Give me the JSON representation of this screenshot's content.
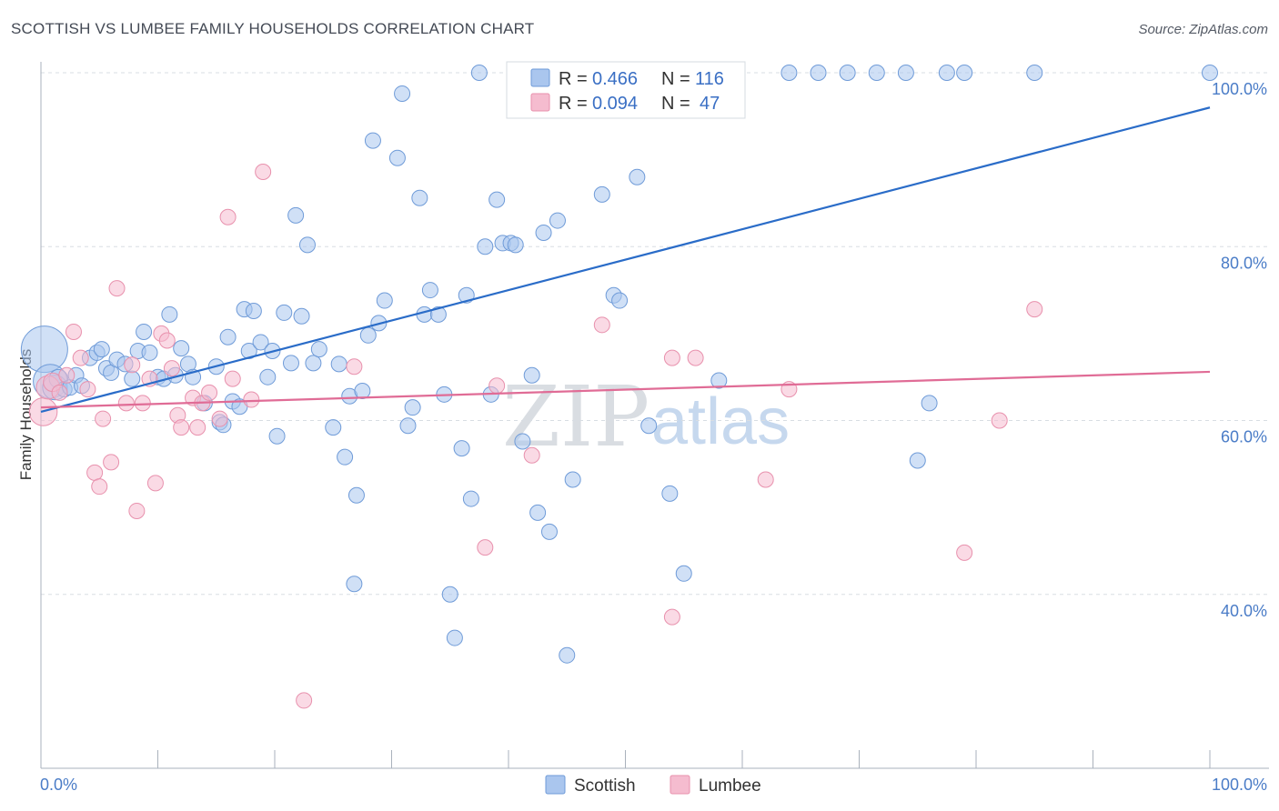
{
  "title": "SCOTTISH VS LUMBEE FAMILY HOUSEHOLDS CORRELATION CHART",
  "source": "Source: ZipAtlas.com",
  "watermark": {
    "zip": "ZIP",
    "atlas": "atlas"
  },
  "colors": {
    "scottish_fill": "#aac6ee",
    "scottish_stroke": "#6f9bd8",
    "scottish_line": "#2a6cc8",
    "lumbee_fill": "#f5bccf",
    "lumbee_stroke": "#e891ad",
    "lumbee_line": "#e06c96",
    "grid": "#d8dde3",
    "tick_label": "#4a7cc7"
  },
  "legend": {
    "rows": [
      {
        "r_label": "R =",
        "r_value": "0.466",
        "n_label": "N =",
        "n_value": "116"
      },
      {
        "r_label": "R =",
        "r_value": "0.094",
        "n_label": "N =",
        "n_value": "47"
      }
    ]
  },
  "bottom_legend": [
    "Scottish",
    "Lumbee"
  ],
  "chart_data": {
    "type": "scatter",
    "title": "SCOTTISH VS LUMBEE FAMILY HOUSEHOLDS CORRELATION CHART",
    "xlabel": "",
    "ylabel": "Family Households",
    "xlim": [
      0,
      100
    ],
    "ylim": [
      20,
      100
    ],
    "x_tick_labels": [
      "0.0%",
      "100.0%"
    ],
    "y_ticks": [
      40,
      60,
      80,
      100
    ],
    "y_tick_labels": [
      "40.0%",
      "60.0%",
      "80.0%",
      "100.0%"
    ],
    "grid": true,
    "legend_position": "top-center",
    "series": [
      {
        "name": "Scottish",
        "r": 0.466,
        "n": 116,
        "trend": [
          [
            0,
            61.0
          ],
          [
            100,
            96.0
          ]
        ],
        "points": [
          [
            0.3,
            68.2,
            3
          ],
          [
            0.8,
            64.5,
            2.2
          ],
          [
            1.2,
            63.8,
            1.6
          ],
          [
            1.5,
            64.8,
            1.2
          ],
          [
            2.0,
            63.6,
            1
          ],
          [
            2.5,
            63.8,
            1
          ],
          [
            3.0,
            65.2,
            1
          ],
          [
            3.5,
            64.0,
            1
          ],
          [
            4.2,
            67.2,
            1
          ],
          [
            4.8,
            67.8,
            1
          ],
          [
            5.2,
            68.2,
            1
          ],
          [
            5.6,
            66.0,
            1
          ],
          [
            6.0,
            65.5,
            1
          ],
          [
            6.5,
            67.0,
            1
          ],
          [
            7.2,
            66.5,
            1
          ],
          [
            7.8,
            64.8,
            1
          ],
          [
            8.3,
            68.0,
            1
          ],
          [
            8.8,
            70.2,
            1
          ],
          [
            9.3,
            67.8,
            1
          ],
          [
            10.0,
            65.0,
            1
          ],
          [
            10.5,
            64.8,
            1
          ],
          [
            11.0,
            72.2,
            1
          ],
          [
            11.5,
            65.2,
            1
          ],
          [
            12.0,
            68.3,
            1
          ],
          [
            12.6,
            66.5,
            1
          ],
          [
            13.0,
            65.0,
            1
          ],
          [
            14.0,
            62.0,
            1
          ],
          [
            15.0,
            66.2,
            1
          ],
          [
            15.3,
            59.8,
            1
          ],
          [
            15.6,
            59.5,
            1
          ],
          [
            16.0,
            69.6,
            1
          ],
          [
            16.4,
            62.2,
            1
          ],
          [
            17.0,
            61.6,
            1
          ],
          [
            17.4,
            72.8,
            1
          ],
          [
            17.8,
            68.0,
            1
          ],
          [
            18.2,
            72.6,
            1
          ],
          [
            18.8,
            69.0,
            1
          ],
          [
            19.4,
            65.0,
            1
          ],
          [
            19.8,
            68.0,
            1
          ],
          [
            20.2,
            58.2,
            1
          ],
          [
            20.8,
            72.4,
            1
          ],
          [
            21.4,
            66.6,
            1
          ],
          [
            21.8,
            83.6,
            1
          ],
          [
            22.3,
            72.0,
            1
          ],
          [
            22.8,
            80.2,
            1
          ],
          [
            23.3,
            66.6,
            1
          ],
          [
            23.8,
            68.2,
            1
          ],
          [
            25.0,
            59.2,
            1
          ],
          [
            25.5,
            66.5,
            1
          ],
          [
            26.0,
            55.8,
            1
          ],
          [
            26.4,
            62.8,
            1
          ],
          [
            26.8,
            41.2,
            1
          ],
          [
            27.0,
            51.4,
            1
          ],
          [
            27.5,
            63.4,
            1
          ],
          [
            28.0,
            69.8,
            1
          ],
          [
            28.4,
            92.2,
            1
          ],
          [
            28.9,
            71.2,
            1
          ],
          [
            29.4,
            73.8,
            1
          ],
          [
            30.5,
            90.2,
            1
          ],
          [
            30.9,
            97.6,
            1
          ],
          [
            31.4,
            59.4,
            1
          ],
          [
            31.8,
            61.5,
            1
          ],
          [
            32.4,
            85.6,
            1
          ],
          [
            32.8,
            72.2,
            1
          ],
          [
            33.3,
            75.0,
            1
          ],
          [
            34.0,
            72.2,
            1
          ],
          [
            34.5,
            63.0,
            1
          ],
          [
            35.0,
            40.0,
            1
          ],
          [
            35.4,
            35.0,
            1
          ],
          [
            36.0,
            56.8,
            1
          ],
          [
            36.4,
            74.4,
            1
          ],
          [
            36.8,
            51.0,
            1
          ],
          [
            37.5,
            100.0,
            1
          ],
          [
            38.0,
            80.0,
            1
          ],
          [
            38.5,
            63.0,
            1
          ],
          [
            39.0,
            85.4,
            1
          ],
          [
            39.5,
            80.4,
            1
          ],
          [
            40.2,
            80.4,
            1
          ],
          [
            40.6,
            80.2,
            1
          ],
          [
            41.2,
            57.6,
            1
          ],
          [
            42.0,
            65.2,
            1
          ],
          [
            42.5,
            49.4,
            1
          ],
          [
            43.0,
            81.6,
            1
          ],
          [
            43.5,
            47.2,
            1
          ],
          [
            44.2,
            83.0,
            1
          ],
          [
            45.0,
            33.0,
            1
          ],
          [
            45.5,
            53.2,
            1
          ],
          [
            46.0,
            96.2,
            1
          ],
          [
            47.0,
            100.0,
            1
          ],
          [
            48.0,
            86.0,
            1
          ],
          [
            49.0,
            74.4,
            1
          ],
          [
            49.5,
            73.8,
            1
          ],
          [
            51.0,
            88.0,
            1
          ],
          [
            52.0,
            59.4,
            1
          ],
          [
            53.0,
            96.0,
            1
          ],
          [
            53.8,
            51.6,
            1
          ],
          [
            55.0,
            42.4,
            1
          ],
          [
            56.0,
            100.0,
            1
          ],
          [
            57.0,
            100.0,
            1
          ],
          [
            58.0,
            64.6,
            1
          ],
          [
            64.0,
            100.0,
            1
          ],
          [
            66.5,
            100.0,
            1
          ],
          [
            69.0,
            100.0,
            1
          ],
          [
            71.5,
            100.0,
            1
          ],
          [
            74.0,
            100.0,
            1
          ],
          [
            75.0,
            55.4,
            1
          ],
          [
            76.0,
            62.0,
            1
          ],
          [
            77.5,
            100.0,
            1
          ],
          [
            79.0,
            100.0,
            1
          ],
          [
            85.0,
            100.0,
            1
          ],
          [
            100.0,
            100.0,
            1
          ]
        ]
      },
      {
        "name": "Lumbee",
        "r": 0.094,
        "n": 47,
        "trend": [
          [
            0,
            61.5
          ],
          [
            100,
            65.6
          ]
        ],
        "points": [
          [
            0.2,
            61.0,
            1.8
          ],
          [
            0.6,
            63.8,
            1.5
          ],
          [
            1.0,
            64.4,
            1.2
          ],
          [
            1.6,
            63.2,
            1
          ],
          [
            2.2,
            65.2,
            1
          ],
          [
            2.8,
            70.2,
            1
          ],
          [
            3.4,
            67.2,
            1
          ],
          [
            4.0,
            63.6,
            1
          ],
          [
            4.6,
            54.0,
            1
          ],
          [
            5.0,
            52.4,
            1
          ],
          [
            5.3,
            60.2,
            1
          ],
          [
            6.0,
            55.2,
            1
          ],
          [
            6.5,
            75.2,
            1
          ],
          [
            7.3,
            62.0,
            1
          ],
          [
            7.8,
            66.4,
            1
          ],
          [
            8.2,
            49.6,
            1
          ],
          [
            8.7,
            62.0,
            1
          ],
          [
            9.3,
            64.8,
            1
          ],
          [
            9.8,
            52.8,
            1
          ],
          [
            10.3,
            70.0,
            1
          ],
          [
            10.8,
            69.2,
            1
          ],
          [
            11.2,
            66.0,
            1
          ],
          [
            11.7,
            60.6,
            1
          ],
          [
            12.0,
            59.2,
            1
          ],
          [
            13.0,
            62.6,
            1
          ],
          [
            13.4,
            59.2,
            1
          ],
          [
            13.8,
            62.0,
            1
          ],
          [
            14.4,
            63.2,
            1
          ],
          [
            15.3,
            60.2,
            1
          ],
          [
            16.0,
            83.4,
            1
          ],
          [
            16.4,
            64.8,
            1
          ],
          [
            18.0,
            62.4,
            1
          ],
          [
            19.0,
            88.6,
            1
          ],
          [
            22.5,
            27.8,
            1
          ],
          [
            26.8,
            66.2,
            1
          ],
          [
            38.0,
            45.4,
            1
          ],
          [
            39.0,
            64.0,
            1
          ],
          [
            42.0,
            56.0,
            1
          ],
          [
            48.0,
            71.0,
            1
          ],
          [
            54.0,
            67.2,
            1
          ],
          [
            54.0,
            37.4,
            1
          ],
          [
            56.0,
            67.2,
            1
          ],
          [
            62.0,
            53.2,
            1
          ],
          [
            64.0,
            63.6,
            1
          ],
          [
            79.0,
            44.8,
            1
          ],
          [
            82.0,
            60.0,
            1
          ],
          [
            85.0,
            72.8,
            1
          ]
        ]
      }
    ]
  }
}
